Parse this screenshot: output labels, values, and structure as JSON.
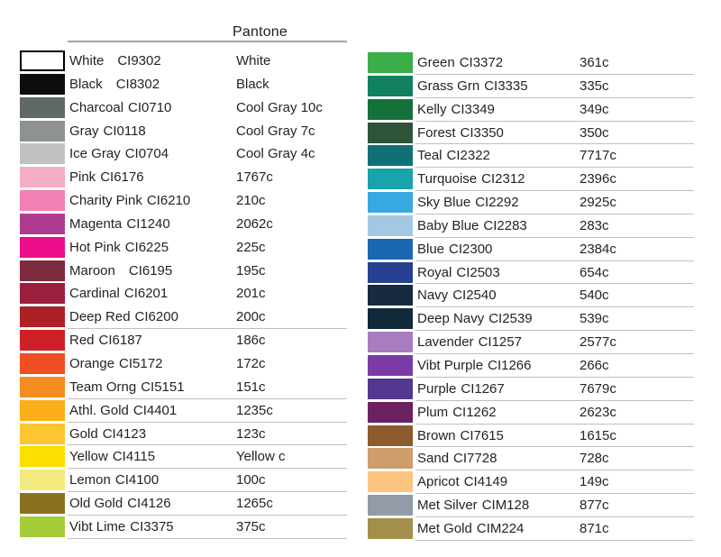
{
  "header": {
    "pantone_label": "Pantone"
  },
  "colors": {
    "text": "#262223",
    "header_rule": "#a3a5a8",
    "row_rule": "#c0c0c0"
  },
  "left_table": {
    "rows": [
      {
        "name": "White",
        "code": "CI9302",
        "pantone": "White",
        "swatch": "#ffffff",
        "bordered": true,
        "wide_gap": true,
        "underline": false
      },
      {
        "name": "Black",
        "code": "CI8302",
        "pantone": "Black",
        "swatch": "#0d0d0d",
        "bordered": false,
        "wide_gap": true,
        "underline": false
      },
      {
        "name": "Charcoal",
        "code": "CI0710",
        "pantone": "Cool Gray 10c",
        "swatch": "#5f6966",
        "bordered": false,
        "wide_gap": false,
        "underline": false
      },
      {
        "name": "Gray",
        "code": "CI0118",
        "pantone": "Cool Gray 7c",
        "swatch": "#8e9391",
        "bordered": false,
        "wide_gap": false,
        "underline": false
      },
      {
        "name": "Ice Gray",
        "code": "CI0704",
        "pantone": "Cool Gray 4c",
        "swatch": "#c1c3c2",
        "bordered": false,
        "wide_gap": false,
        "underline": false
      },
      {
        "name": "Pink",
        "code": "CI6176",
        "pantone": "1767c",
        "swatch": "#f4aec6",
        "bordered": false,
        "wide_gap": false,
        "underline": false
      },
      {
        "name": "Charity Pink",
        "code": "CI6210",
        "pantone": "210c",
        "swatch": "#f180b5",
        "bordered": false,
        "wide_gap": false,
        "underline": false
      },
      {
        "name": "Magenta",
        "code": "CI1240",
        "pantone": "2062c",
        "swatch": "#ad3c8e",
        "bordered": false,
        "wide_gap": false,
        "underline": false
      },
      {
        "name": "Hot Pink",
        "code": "CI6225",
        "pantone": "225c",
        "swatch": "#ec0d8c",
        "bordered": false,
        "wide_gap": false,
        "underline": false
      },
      {
        "name": "Maroon",
        "code": "CI6195",
        "pantone": "195c",
        "swatch": "#7d2b3f",
        "bordered": false,
        "wide_gap": true,
        "underline": false
      },
      {
        "name": "Cardinal",
        "code": "CI6201",
        "pantone": "201c",
        "swatch": "#9c1e3f",
        "bordered": false,
        "wide_gap": false,
        "underline": false
      },
      {
        "name": "Deep Red",
        "code": "CI6200",
        "pantone": "200c",
        "swatch": "#ad2025",
        "bordered": false,
        "wide_gap": false,
        "underline": true
      },
      {
        "name": "Red",
        "code": "CI6187",
        "pantone": "186c",
        "swatch": "#d02027",
        "bordered": false,
        "wide_gap": false,
        "underline": false
      },
      {
        "name": "Orange",
        "code": "CI5172",
        "pantone": "172c",
        "swatch": "#f04e23",
        "bordered": false,
        "wide_gap": false,
        "underline": false
      },
      {
        "name": "Team Orng",
        "code": "CI5151",
        "pantone": "151c",
        "swatch": "#f68b1f",
        "bordered": false,
        "wide_gap": false,
        "underline": true
      },
      {
        "name": "Athl. Gold",
        "code": "CI4401",
        "pantone": "1235c",
        "swatch": "#fbae17",
        "bordered": false,
        "wide_gap": false,
        "underline": true
      },
      {
        "name": "Gold",
        "code": "CI4123",
        "pantone": "123c",
        "swatch": "#fdc530",
        "bordered": false,
        "wide_gap": false,
        "underline": true
      },
      {
        "name": "Yellow",
        "code": "CI4115",
        "pantone": "Yellow c",
        "swatch": "#fcdf00",
        "bordered": false,
        "wide_gap": false,
        "underline": true
      },
      {
        "name": "Lemon",
        "code": "CI4100",
        "pantone": "100c",
        "swatch": "#f2ea7e",
        "bordered": false,
        "wide_gap": false,
        "underline": true
      },
      {
        "name": "Old Gold",
        "code": "CI4126",
        "pantone": "1265c",
        "swatch": "#8c7021",
        "bordered": false,
        "wide_gap": false,
        "underline": true
      },
      {
        "name": "Vibt Lime",
        "code": "CI3375",
        "pantone": "375c",
        "swatch": "#a5cd39",
        "bordered": false,
        "wide_gap": false,
        "underline": true
      }
    ]
  },
  "right_table": {
    "rows": [
      {
        "name": "Green",
        "code": "CI3372",
        "pantone": "361c",
        "swatch": "#3cae49",
        "bordered": false,
        "wide_gap": false,
        "underline": true
      },
      {
        "name": "Grass Grn",
        "code": "CI3335",
        "pantone": "335c",
        "swatch": "#12815f",
        "bordered": false,
        "wide_gap": false,
        "underline": true
      },
      {
        "name": "Kelly",
        "code": "CI3349",
        "pantone": "349c",
        "swatch": "#15713a",
        "bordered": false,
        "wide_gap": false,
        "underline": true
      },
      {
        "name": "Forest",
        "code": "CI3350",
        "pantone": "350c",
        "swatch": "#2e5339",
        "bordered": false,
        "wide_gap": false,
        "underline": true
      },
      {
        "name": "Teal",
        "code": "CI2322",
        "pantone": "7717c",
        "swatch": "#107078",
        "bordered": false,
        "wide_gap": false,
        "underline": true
      },
      {
        "name": "Turquoise",
        "code": "CI2312",
        "pantone": "2396c",
        "swatch": "#18a3ad",
        "bordered": false,
        "wide_gap": false,
        "underline": true
      },
      {
        "name": "Sky Blue",
        "code": "CI2292",
        "pantone": "2925c",
        "swatch": "#36a9e1",
        "bordered": false,
        "wide_gap": false,
        "underline": true
      },
      {
        "name": "Baby Blue",
        "code": "CI2283",
        "pantone": "283c",
        "swatch": "#a4c8e1",
        "bordered": false,
        "wide_gap": false,
        "underline": true
      },
      {
        "name": "Blue",
        "code": "CI2300",
        "pantone": "2384c",
        "swatch": "#1b66b1",
        "bordered": false,
        "wide_gap": false,
        "underline": true
      },
      {
        "name": "Royal",
        "code": "CI2503",
        "pantone": "654c",
        "swatch": "#27408f",
        "bordered": false,
        "wide_gap": false,
        "underline": true
      },
      {
        "name": "Navy",
        "code": "CI2540",
        "pantone": "540c",
        "swatch": "#172a40",
        "bordered": false,
        "wide_gap": false,
        "underline": true
      },
      {
        "name": "Deep Navy",
        "code": "CI2539",
        "pantone": "539c",
        "swatch": "#12293a",
        "bordered": false,
        "wide_gap": false,
        "underline": true
      },
      {
        "name": "Lavender",
        "code": "CI1257",
        "pantone": "2577c",
        "swatch": "#a87cc1",
        "bordered": false,
        "wide_gap": false,
        "underline": true
      },
      {
        "name": "Vibt Purple",
        "code": "CI1266",
        "pantone": "266c",
        "swatch": "#7a3ba7",
        "bordered": false,
        "wide_gap": false,
        "underline": true
      },
      {
        "name": "Purple",
        "code": "CI1267",
        "pantone": "7679c",
        "swatch": "#533790",
        "bordered": false,
        "wide_gap": false,
        "underline": true
      },
      {
        "name": "Plum",
        "code": "CI1262",
        "pantone": "2623c",
        "swatch": "#6c2160",
        "bordered": false,
        "wide_gap": false,
        "underline": true
      },
      {
        "name": "Brown",
        "code": "CI7615",
        "pantone": "1615c",
        "swatch": "#8d5b2e",
        "bordered": false,
        "wide_gap": false,
        "underline": true
      },
      {
        "name": "Sand",
        "code": "CI7728",
        "pantone": "728c",
        "swatch": "#cf9c6c",
        "bordered": false,
        "wide_gap": false,
        "underline": true
      },
      {
        "name": "Apricot",
        "code": "CI4149",
        "pantone": "149c",
        "swatch": "#fbc480",
        "bordered": false,
        "wide_gap": false,
        "underline": true
      },
      {
        "name": "Met Silver",
        "code": "CIM128",
        "pantone": "877c",
        "swatch": "#939ba6",
        "bordered": false,
        "wide_gap": false,
        "underline": true
      },
      {
        "name": "Met Gold",
        "code": "CIM224",
        "pantone": "871c",
        "swatch": "#a28f4c",
        "bordered": false,
        "wide_gap": false,
        "underline": true
      }
    ]
  }
}
